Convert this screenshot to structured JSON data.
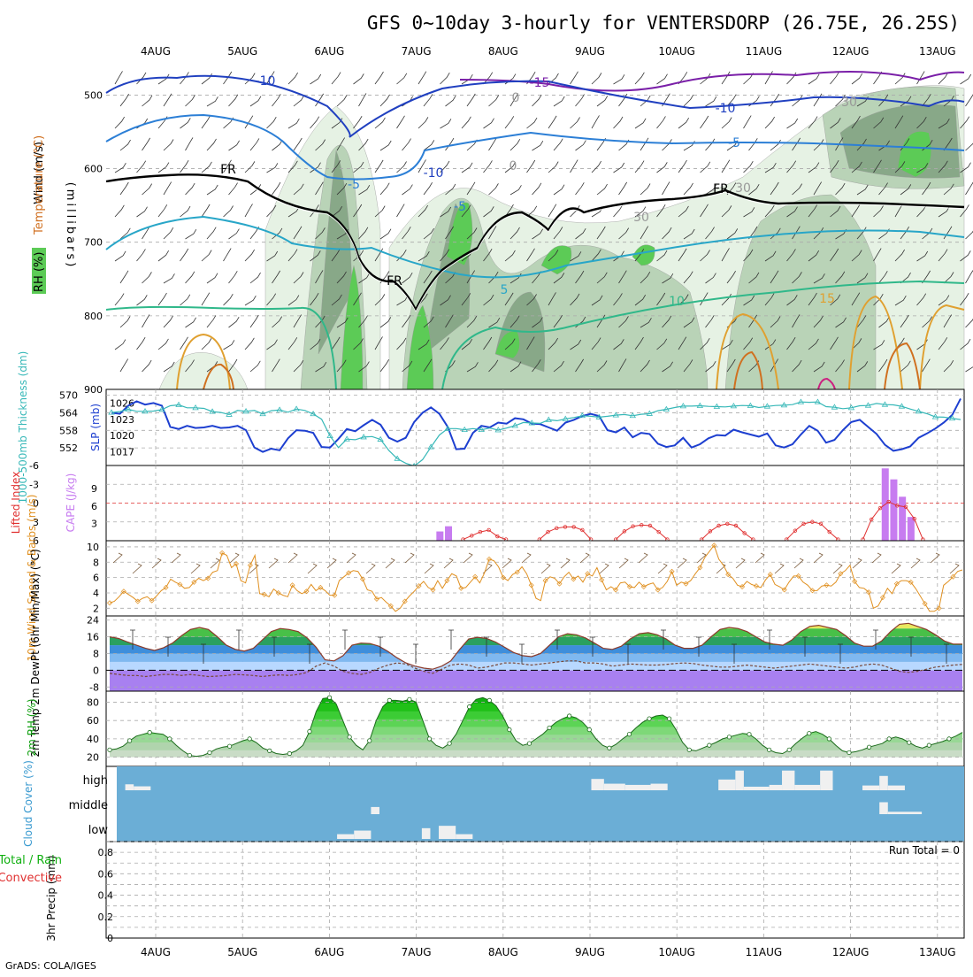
{
  "title": "GFS 0~10day 3-hourly for VENTERSDORP (26.75E, 26.25S)",
  "footer": "GrADS: COLA/IGES",
  "colors": {
    "rh_light": "#e6f2e4",
    "rh_mid": "#b9d3b7",
    "rh_dark": "#88a888",
    "rh_green": "#5ccb56",
    "freeze": "#000000",
    "slp": "#1d3fd0",
    "thickness": "#37b8b8",
    "cape": "#c77cf0",
    "lifted": "#e03030",
    "wind": "#e09020",
    "temp": "#8b3a2a",
    "dewpt": "#7a4a3a",
    "cloud_bg": "#6baed6",
    "cloud_fill": "#f0f0f0"
  },
  "chart_data": [
    {
      "id": "upper-air",
      "type": "contour",
      "x_dates": [
        "4AUG",
        "5AUG",
        "6AUG",
        "7AUG",
        "8AUG",
        "9AUG",
        "10AUG",
        "11AUG",
        "12AUG",
        "13AUG"
      ],
      "yaxis_title": "(millibars)",
      "y_ticks": [
        "500",
        "600",
        "700",
        "800",
        "900"
      ],
      "legend_labels": [
        "Wind (m/s)",
        "Temperature (°C)",
        "RH (%)"
      ],
      "contour_labels": [
        "-15",
        "-10",
        "-10",
        "-10",
        "-5",
        "-5",
        "-5",
        "5",
        "10",
        "15",
        "FR",
        "FR",
        "FR",
        "30",
        "30",
        "30",
        "0",
        "0"
      ]
    },
    {
      "id": "slp-thickness",
      "type": "line",
      "left_axis_label": "1000-500mb Thickness (dm)",
      "left_ticks": [
        "570",
        "564",
        "558",
        "552"
      ],
      "right_axis_label": "SLP (mb)",
      "right_ticks": [
        "1026",
        "1023",
        "1020",
        "1017"
      ],
      "slp_values": [
        1024.2,
        1024.0,
        1025.5,
        1026.3,
        1025.7,
        1026.0,
        1025.5,
        1021.6,
        1021.2,
        1021.8,
        1021.4,
        1021.5,
        1021.8,
        1021.4,
        1021.5,
        1021.8,
        1021.0,
        1017.8,
        1017.0,
        1017.6,
        1017.3,
        1019.5,
        1021.0,
        1020.9,
        1020.5,
        1017.9,
        1017.8,
        1019.4,
        1021.2,
        1020.8,
        1021.9,
        1022.9,
        1022.0,
        1019.6,
        1018.9,
        1019.6,
        1022.5,
        1024.2,
        1025.2,
        1024.0,
        1021.6,
        1017.5,
        1017.6,
        1020.5,
        1021.8,
        1021.5,
        1022.4,
        1022.2,
        1023.2,
        1023.0,
        1022.2,
        1022.1,
        1021.5,
        1020.9,
        1022.4,
        1022.9,
        1023.6,
        1024.0,
        1023.6,
        1021.0,
        1020.6,
        1021.5,
        1019.7,
        1020.5,
        1020.3,
        1018.5,
        1017.9,
        1018.2,
        1019.6,
        1017.8,
        1018.4,
        1019.5,
        1020.1,
        1020.0,
        1021.1,
        1020.6,
        1020.2,
        1019.8,
        1020.4,
        1018.2,
        1017.8,
        1018.4,
        1020.2,
        1021.8,
        1020.9,
        1018.7,
        1019.2,
        1021.0,
        1022.5,
        1022.9,
        1021.6,
        1020.3,
        1018.3,
        1017.2,
        1017.5,
        1018.0,
        1019.6,
        1020.4,
        1021.3,
        1022.4,
        1023.8,
        1026.8
      ],
      "thickness_values": [
        564.1,
        564.4,
        565.2,
        564.5,
        564.5,
        564.6,
        565.1,
        566.4,
        566.7,
        565.7,
        565.7,
        565.5,
        564.4,
        564.1,
        563.4,
        564.8,
        564.5,
        564.8,
        563.6,
        564.7,
        565.0,
        564.2,
        565.3,
        564.8,
        563.6,
        561.8,
        556.1,
        552.1,
        555.0,
        554.8,
        555.7,
        555.9,
        554.9,
        551.1,
        548.3,
        546.8,
        545.8,
        548.0,
        552.3,
        556.4,
        558.6,
        558.6,
        558.2,
        558.6,
        558.2,
        558.8,
        558.1,
        558.8,
        559.6,
        560.7,
        560.5,
        560.4,
        561.6,
        561.3,
        561.9,
        562.4,
        563.0,
        562.8,
        562.5,
        562.8,
        563.2,
        563.4,
        563.0,
        563.5,
        563.7,
        564.7,
        565.2,
        565.8,
        566.3,
        566.3,
        566.4,
        566.2,
        566.1,
        566.0,
        566.3,
        566.5,
        566.4,
        565.8,
        566.2,
        566.5,
        566.6,
        566.8,
        567.7,
        567.6,
        567.7,
        566.1,
        565.9,
        565.4,
        565.7,
        566.4,
        566.5,
        567.2,
        566.8,
        566.7,
        566.2,
        565.3,
        564.5,
        563.7,
        562.6,
        562.5,
        562.1,
        561.7
      ]
    },
    {
      "id": "instability",
      "type": "bar+line",
      "left_axis_label": "Lifted Index",
      "left_ticks": [
        "-6",
        "-3",
        "0",
        "3",
        "6"
      ],
      "right_axis_label": "CAPE (J/kg)",
      "right_ticks": [
        "9",
        "6",
        "3"
      ],
      "cape_bars": [
        {
          "x": 38.9,
          "v": 1.6
        },
        {
          "x": 39.9,
          "v": 2.5
        },
        {
          "x": 90.8,
          "v": 12.5
        },
        {
          "x": 91.8,
          "v": 10.6
        },
        {
          "x": 92.8,
          "v": 7.6
        },
        {
          "x": 93.8,
          "v": 4.1
        }
      ],
      "lifted_index": [
        [
          41.6,
          5.8
        ],
        [
          42.6,
          5.2
        ],
        [
          43.6,
          4.6
        ],
        [
          44.6,
          4.3
        ],
        [
          45.6,
          5.3
        ],
        [
          46.6,
          5.8
        ],
        [
          50.5,
          5.8
        ],
        [
          51.5,
          4.6
        ],
        [
          52.5,
          4.0
        ],
        [
          53.5,
          3.8
        ],
        [
          54.5,
          3.8
        ],
        [
          55.5,
          4.3
        ],
        [
          56.5,
          5.8
        ],
        [
          59.4,
          5.8
        ],
        [
          60.4,
          4.5
        ],
        [
          61.4,
          3.7
        ],
        [
          62.4,
          3.5
        ],
        [
          63.4,
          3.6
        ],
        [
          64.4,
          4.6
        ],
        [
          65.4,
          5.8
        ],
        [
          69.4,
          5.8
        ],
        [
          70.4,
          4.5
        ],
        [
          71.4,
          3.6
        ],
        [
          72.4,
          3.3
        ],
        [
          73.4,
          3.6
        ],
        [
          74.4,
          4.8
        ],
        [
          75.4,
          5.8
        ],
        [
          79.3,
          5.8
        ],
        [
          80.3,
          4.4
        ],
        [
          81.3,
          3.3
        ],
        [
          82.3,
          3.0
        ],
        [
          83.3,
          3.3
        ],
        [
          84.3,
          4.6
        ],
        [
          85.3,
          5.8
        ],
        [
          88.2,
          5.8
        ],
        [
          89.2,
          2.6
        ],
        [
          90.2,
          0.8
        ],
        [
          91.2,
          -0.2
        ],
        [
          92.2,
          0.4
        ],
        [
          93.2,
          0.6
        ],
        [
          94.2,
          2.5
        ],
        [
          95.2,
          5.8
        ]
      ]
    },
    {
      "id": "surface-wind",
      "type": "line",
      "left_axis_label": "10m Wind Speed & Barbs (m/s)",
      "left_ticks": [
        "10",
        "8",
        "6",
        "4",
        "2"
      ],
      "wind_values": [
        2.7,
        2.9,
        3.5,
        4.2,
        3.8,
        3.4,
        2.9,
        3.3,
        3.5,
        3.0,
        3.6,
        4.3,
        4.7,
        5.8,
        5.4,
        5.1,
        4.6,
        4.7,
        5.4,
        5.9,
        5.6,
        5.9,
        6.7,
        6.9,
        9.2,
        8.9,
        7.3,
        7.8,
        5.6,
        5.3,
        7.6,
        8.9,
        3.9,
        3.8,
        3.5,
        4.5,
        4.0,
        3.7,
        3.5,
        5.0,
        4.3,
        3.9,
        4.2,
        5.1,
        4.3,
        4.7,
        4.3,
        3.7,
        3.7,
        5.6,
        6.1,
        6.6,
        6.9,
        6.8,
        5.8,
        4.4,
        4.2,
        3.2,
        3.4,
        2.8,
        2.3,
        1.6,
        2.0,
        2.9,
        3.6,
        4.2,
        4.9,
        5.5,
        4.7,
        4.4,
        5.6,
        4.6,
        5.6,
        6.5,
        6.2,
        4.6,
        4.7,
        5.4,
        6.1,
        5.3,
        6.6,
        8.4,
        8.2,
        7.4,
        6.0,
        5.6,
        6.4,
        6.7,
        7.4,
        6.5,
        5.0,
        3.3,
        3.0,
        5.6,
        6.1,
        5.9,
        5.2,
        6.1,
        6.7,
        5.8,
        6.2,
        5.4,
        6.5,
        6.2,
        7.3,
        5.7,
        4.4,
        4.8,
        4.4,
        5.3,
        5.4,
        4.8,
        4.7,
        5.4,
        4.8,
        5.1,
        5.3,
        4.4,
        4.7,
        5.5,
        6.8,
        5.0,
        5.4,
        5.2,
        5.6,
        6.5,
        7.3,
        8.6,
        9.4,
        10.2,
        8.4,
        7.6,
        6.4,
        5.9,
        5.0,
        4.8,
        5.5,
        5.1,
        4.9,
        4.7,
        5.7,
        6.4,
        5.1,
        4.8,
        4.4,
        5.4,
        6.2,
        6.2,
        5.4,
        5.0,
        4.3,
        4.3,
        4.9,
        5.0,
        4.9,
        5.4,
        6.5,
        6.9,
        7.6,
        5.5,
        4.7,
        4.6,
        4.1,
        2.0,
        2.3,
        3.4,
        4.6,
        3.9,
        5.2,
        5.6,
        5.6,
        5.4,
        4.6,
        3.6,
        2.6,
        1.6,
        1.6,
        2.0,
        5.0,
        5.5,
        6.1,
        6.8,
        7.0
      ]
    },
    {
      "id": "surface-temp",
      "type": "area",
      "left_axis_label": "2m Temp 2m DewPt (6hr Min/Max) (°C)",
      "left_ticks": [
        "24",
        "16",
        "8",
        "0",
        "-8"
      ],
      "temp_values": [
        16.0,
        15.2,
        13.5,
        12.0,
        10.5,
        9.5,
        10.8,
        13.0,
        16.5,
        19.5,
        20.5,
        19.5,
        16.0,
        12.0,
        10.0,
        9.2,
        10.5,
        14.5,
        18.5,
        20.0,
        19.5,
        18.5,
        15.5,
        11.0,
        5.0,
        4.5,
        7.0,
        12.0,
        13.0,
        12.8,
        11.5,
        9.0,
        6.0,
        3.5,
        2.0,
        1.0,
        0.5,
        2.0,
        4.5,
        10.0,
        15.0,
        15.8,
        15.2,
        13.5,
        11.0,
        8.5,
        7.0,
        6.5,
        8.0,
        12.0,
        16.0,
        17.5,
        17.0,
        15.5,
        13.0,
        10.5,
        10.0,
        11.5,
        15.0,
        17.5,
        18.0,
        17.0,
        15.0,
        12.0,
        10.5,
        10.5,
        12.0,
        16.0,
        19.5,
        20.5,
        20.0,
        18.5,
        16.0,
        13.5,
        12.5,
        12.0,
        14.5,
        18.5,
        21.0,
        21.5,
        20.5,
        19.5,
        16.5,
        13.0,
        11.5,
        11.5,
        14.0,
        18.5,
        22.0,
        22.5,
        21.0,
        19.5,
        17.0,
        14.0,
        12.5,
        12.5
      ],
      "dewpt_values": [
        -1.5,
        -2.0,
        -2.5,
        -2.5,
        -3.0,
        -2.5,
        -2.0,
        -2.0,
        -2.5,
        -2.0,
        -2.5,
        -3.0,
        -2.8,
        -2.5,
        -2.0,
        -2.2,
        -2.5,
        -3.0,
        -2.5,
        -2.2,
        -2.5,
        -2.0,
        -1.0,
        2.0,
        3.5,
        2.0,
        -0.5,
        -1.5,
        -2.0,
        -1.0,
        1.0,
        2.5,
        3.5,
        3.0,
        1.0,
        -0.5,
        -1.5,
        0.5,
        2.5,
        3.0,
        2.5,
        1.0,
        1.5,
        2.5,
        3.5,
        3.5,
        3.0,
        2.5,
        3.0,
        3.5,
        4.0,
        4.5,
        4.5,
        3.5,
        3.5,
        3.0,
        2.0,
        2.5,
        3.0,
        2.8,
        2.5,
        2.5,
        2.8,
        3.2,
        3.5,
        3.2,
        2.5,
        2.0,
        1.5,
        1.5,
        2.0,
        2.5,
        2.0,
        1.5,
        1.0,
        1.5,
        2.0,
        2.5,
        3.0,
        2.5,
        2.0,
        1.5,
        1.0,
        1.5,
        2.5,
        3.0,
        2.5,
        1.0,
        -0.5,
        -1.0,
        -0.5,
        0.5,
        1.5,
        2.0,
        2.5,
        2.8
      ]
    },
    {
      "id": "surface-rh",
      "type": "area",
      "left_axis_label": "2m RH (%)",
      "left_ticks": [
        "80",
        "60",
        "40",
        "20"
      ],
      "rh_values": [
        28,
        29,
        32,
        38,
        43,
        45,
        47,
        46,
        45,
        40,
        33,
        27,
        22,
        21,
        22,
        25,
        29,
        31,
        32,
        35,
        38,
        40,
        36,
        30,
        27,
        24,
        23,
        24,
        27,
        33,
        48,
        70,
        84,
        85,
        78,
        60,
        42,
        33,
        28,
        38,
        60,
        75,
        82,
        82,
        81,
        83,
        80,
        60,
        40,
        33,
        30,
        35,
        45,
        60,
        75,
        83,
        85,
        82,
        76,
        65,
        50,
        38,
        33,
        35,
        40,
        45,
        52,
        58,
        62,
        65,
        63,
        58,
        50,
        40,
        33,
        30,
        34,
        40,
        45,
        52,
        58,
        62,
        65,
        66,
        62,
        50,
        36,
        28,
        27,
        30,
        33,
        36,
        40,
        42,
        44,
        46,
        45,
        40,
        33,
        28,
        25,
        24,
        28,
        35,
        41,
        46,
        48,
        45,
        40,
        33,
        27,
        25,
        26,
        28,
        31,
        33,
        35,
        40,
        42,
        40,
        36,
        32,
        30,
        33,
        35,
        37,
        40,
        43,
        47
      ]
    },
    {
      "id": "cloud-cover",
      "type": "bar",
      "left_axis_label": "Cloud Cover (%)",
      "levels": [
        "high",
        "middle",
        "low"
      ],
      "high_segments": [
        [
          1.0,
          2.0,
          50
        ],
        [
          2.0,
          4.0,
          33
        ],
        [
          56.0,
          57.5,
          95
        ],
        [
          57.5,
          60.0,
          55
        ],
        [
          60.0,
          63.0,
          45
        ],
        [
          63.0,
          65.0,
          55
        ],
        [
          71.0,
          73.0,
          90
        ],
        [
          73.0,
          74.0,
          165
        ],
        [
          74.0,
          77.0,
          30
        ],
        [
          77.0,
          78.5,
          45
        ],
        [
          78.5,
          80.0,
          165
        ],
        [
          80.0,
          83.0,
          45
        ],
        [
          83.0,
          84.5,
          165
        ],
        [
          88.0,
          90.0,
          40
        ],
        [
          90.0,
          91.0,
          120
        ],
        [
          91.0,
          93.0,
          40
        ]
      ],
      "middle_segments": [
        [
          30.0,
          31.0,
          60
        ],
        [
          90.0,
          91.0,
          100
        ],
        [
          91.0,
          95.0,
          20
        ]
      ],
      "low_segments": [
        [
          26.0,
          28.0,
          40
        ],
        [
          28.0,
          30.0,
          70
        ],
        [
          36.0,
          37.0,
          90
        ],
        [
          38.0,
          40.0,
          110
        ],
        [
          40.0,
          42.0,
          40
        ]
      ]
    },
    {
      "id": "precip",
      "type": "bar",
      "left_axis_label": "3hr Precip (mm)",
      "legend_labels": [
        "Total / Rain",
        "Convective"
      ],
      "left_ticks": [
        "0.8",
        "0.6",
        "0.4",
        "0.2",
        "0"
      ],
      "run_total": "Run Total = 0",
      "values": []
    }
  ]
}
